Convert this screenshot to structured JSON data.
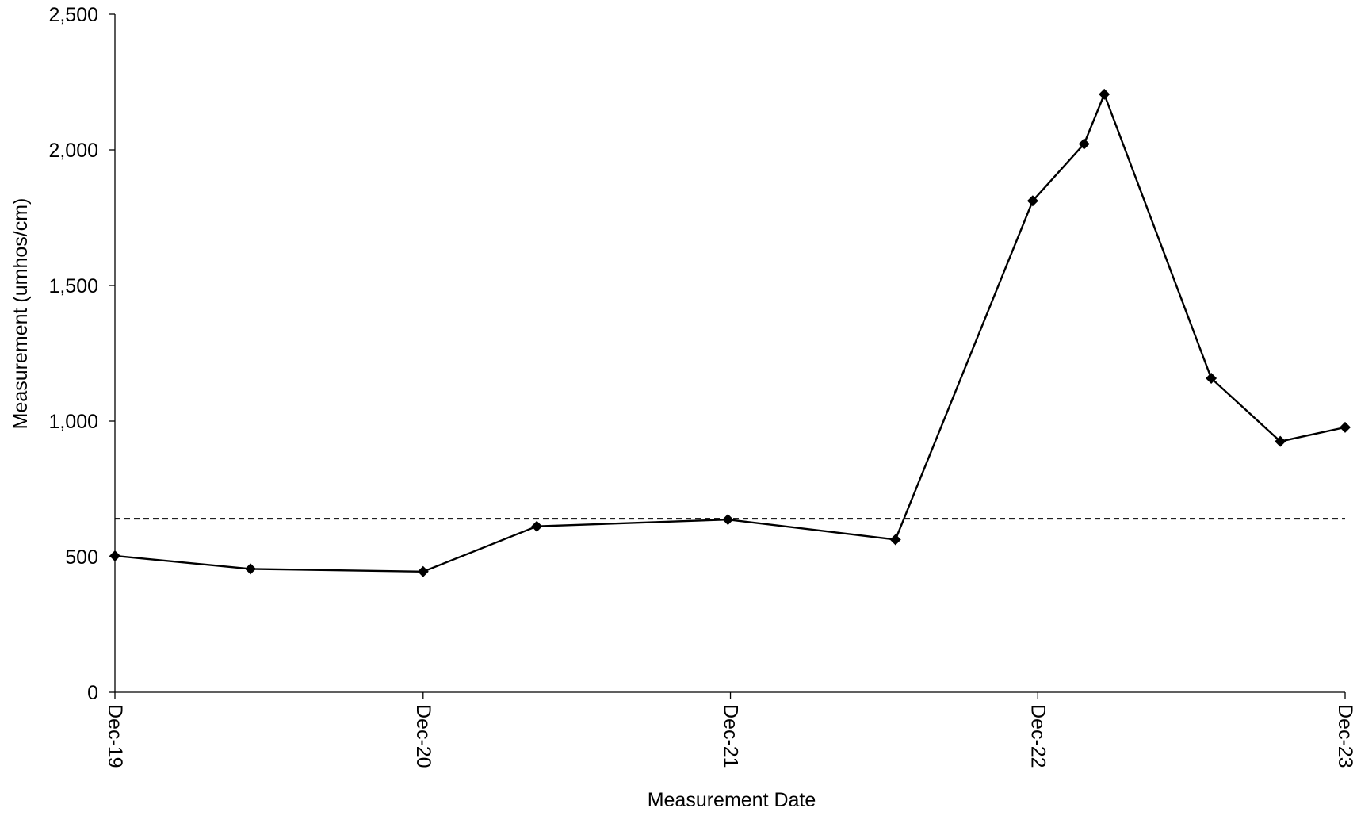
{
  "chart_data": {
    "type": "line",
    "title": "",
    "xlabel": "Measurement Date",
    "ylabel": "Measurement (umhos/cm)",
    "ylim": [
      0,
      2500
    ],
    "xlim": [
      "2019-12-01",
      "2023-12-01"
    ],
    "y_ticks": [
      {
        "value": 0,
        "label": "0"
      },
      {
        "value": 500,
        "label": "500"
      },
      {
        "value": 1000,
        "label": "1,000"
      },
      {
        "value": 1500,
        "label": "1,500"
      },
      {
        "value": 2000,
        "label": "2,000"
      },
      {
        "value": 2500,
        "label": "2,500"
      }
    ],
    "x_ticks": [
      {
        "value": "2019-12-01",
        "label": "Dec-19"
      },
      {
        "value": "2020-12-01",
        "label": "Dec-20"
      },
      {
        "value": "2021-12-01",
        "label": "Dec-21"
      },
      {
        "value": "2022-12-01",
        "label": "Dec-22"
      },
      {
        "value": "2023-12-01",
        "label": "Dec-23"
      }
    ],
    "series": [
      {
        "marker": "diamond",
        "color": "#000000",
        "points": [
          {
            "x": "2019-12-01",
            "y": 503
          },
          {
            "x": "2020-05-10",
            "y": 455
          },
          {
            "x": "2020-12-01",
            "y": 445
          },
          {
            "x": "2021-04-15",
            "y": 612
          },
          {
            "x": "2021-11-28",
            "y": 637
          },
          {
            "x": "2022-06-15",
            "y": 563
          },
          {
            "x": "2022-11-25",
            "y": 1812
          },
          {
            "x": "2023-01-25",
            "y": 2022
          },
          {
            "x": "2023-02-18",
            "y": 2205
          },
          {
            "x": "2023-06-25",
            "y": 1158
          },
          {
            "x": "2023-09-15",
            "y": 925
          },
          {
            "x": "2023-12-01",
            "y": 977
          }
        ]
      }
    ],
    "reference_lines": [
      {
        "y": 640,
        "style": "dashed",
        "color": "#000000"
      }
    ],
    "grid": false,
    "legend": "none"
  }
}
